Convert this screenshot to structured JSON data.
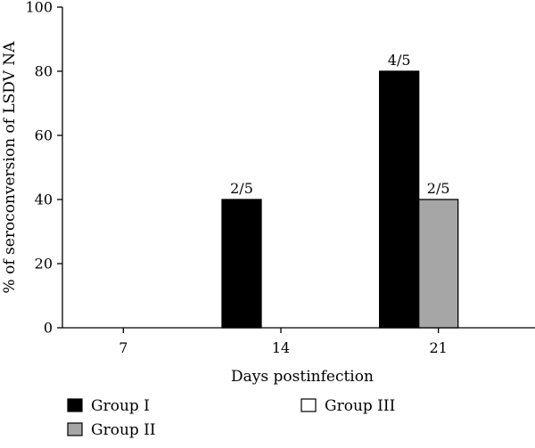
{
  "chart_data": {
    "type": "bar",
    "categories": [
      "7",
      "14",
      "21"
    ],
    "series": [
      {
        "name": "Group I",
        "color": "#000000",
        "values": [
          0,
          40,
          80
        ],
        "labels": [
          "",
          "2/5",
          "4/5"
        ]
      },
      {
        "name": "Group II",
        "color": "#a6a6a6",
        "values": [
          0,
          0,
          40
        ],
        "labels": [
          "",
          "",
          "2/5"
        ]
      },
      {
        "name": "Group III",
        "color": "#ffffff",
        "values": [
          0,
          0,
          0
        ],
        "labels": [
          "",
          "",
          ""
        ]
      }
    ],
    "xlabel": "Days postinfection",
    "ylabel": "% of seroconversion of  LSDV NA",
    "ylim": [
      0,
      100
    ],
    "yticks": [
      0,
      20,
      40,
      60,
      80,
      100
    ],
    "grid": false,
    "legend_position": "bottom"
  }
}
